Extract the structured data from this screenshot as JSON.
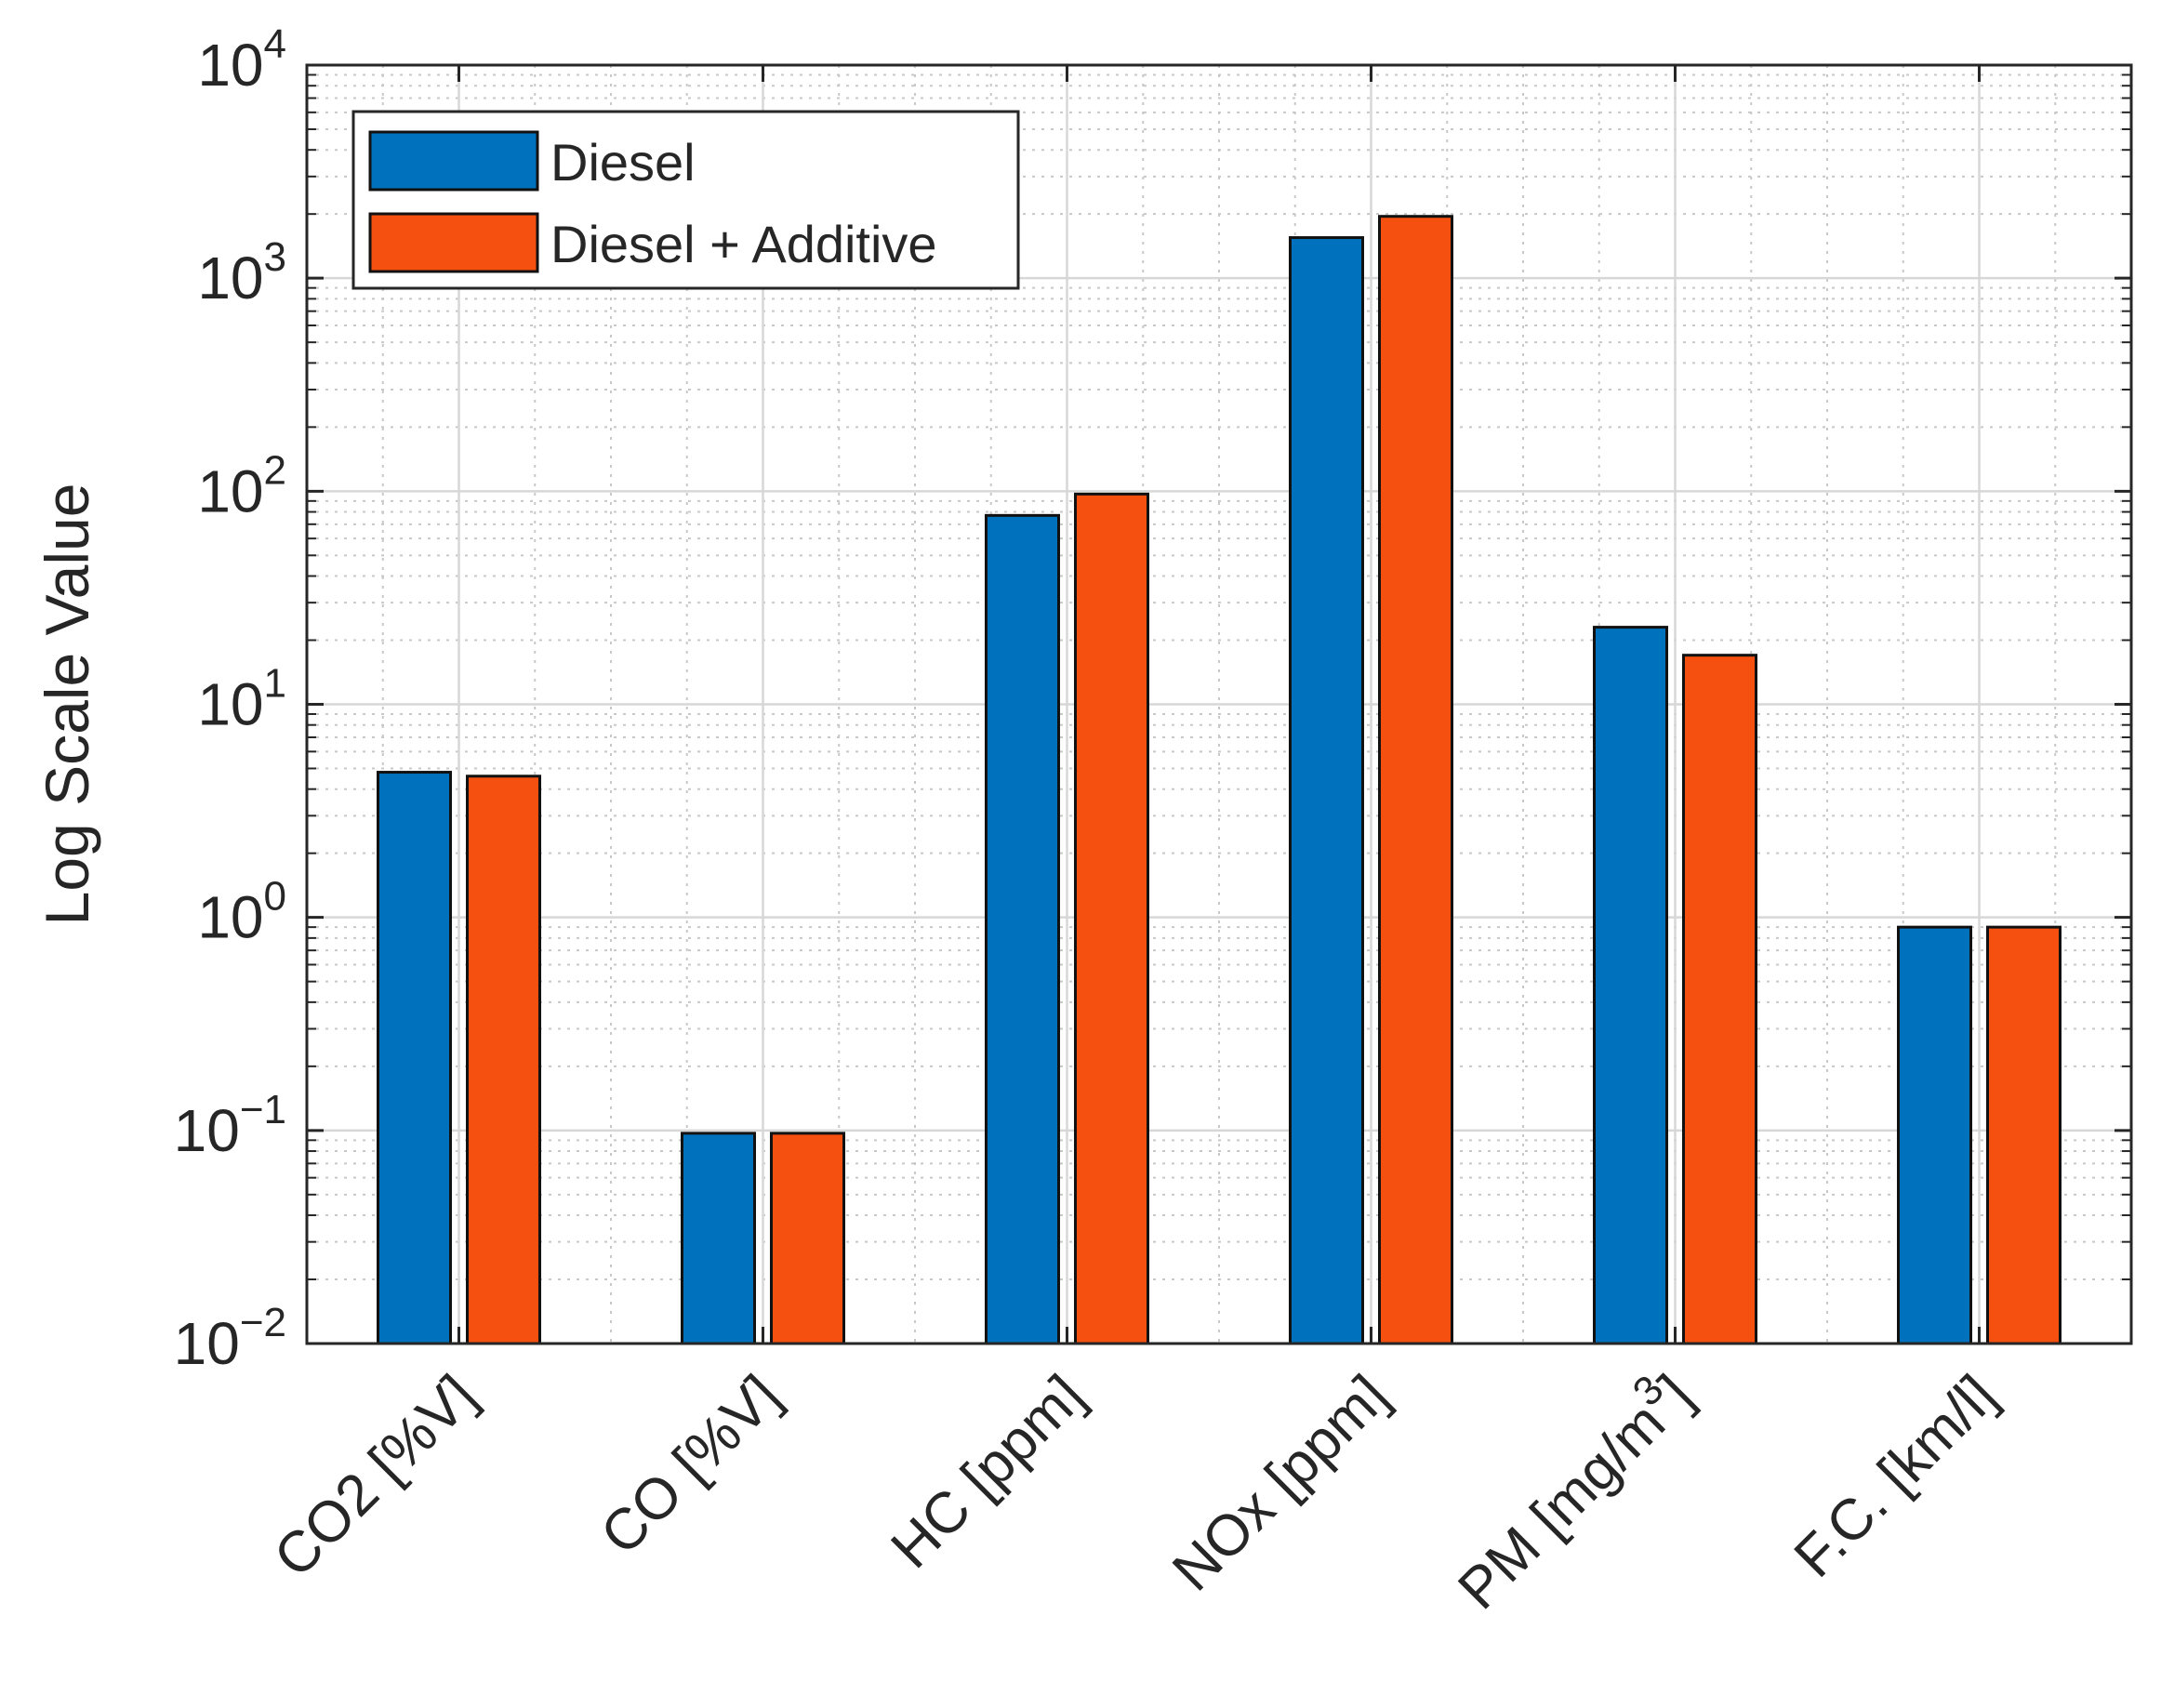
{
  "chart_data": {
    "type": "bar",
    "title": "",
    "xlabel": "",
    "ylabel": "Log Scale Value",
    "yscale": "log",
    "ylim": [
      0.01,
      10000
    ],
    "grid": true,
    "minor_grid": true,
    "legend_position": "top-left",
    "categories": [
      {
        "main": "CO2 [%V]",
        "sup": ""
      },
      {
        "main": "CO [%V]",
        "sup": ""
      },
      {
        "main": "HC [ppm]",
        "sup": ""
      },
      {
        "main": "NOx [ppm]",
        "sup": ""
      },
      {
        "main": "PM [mg/m",
        "sup": "3",
        "tail": "]"
      },
      {
        "main": "F.C. [km/l]",
        "sup": ""
      }
    ],
    "y_ticks": [
      {
        "base": "10",
        "exp": "−2",
        "value": 0.01
      },
      {
        "base": "10",
        "exp": "−1",
        "value": 0.1
      },
      {
        "base": "10",
        "exp": "0",
        "value": 1
      },
      {
        "base": "10",
        "exp": "1",
        "value": 10
      },
      {
        "base": "10",
        "exp": "2",
        "value": 100
      },
      {
        "base": "10",
        "exp": "3",
        "value": 1000
      },
      {
        "base": "10",
        "exp": "4",
        "value": 10000
      }
    ],
    "series": [
      {
        "name": "Diesel",
        "color": "#0072BD",
        "values": [
          4.8,
          0.097,
          77,
          1550,
          23,
          0.9
        ]
      },
      {
        "name": "Diesel + Additive",
        "color": "#F5500F",
        "values": [
          4.6,
          0.097,
          97,
          1950,
          17,
          0.9
        ]
      }
    ]
  }
}
